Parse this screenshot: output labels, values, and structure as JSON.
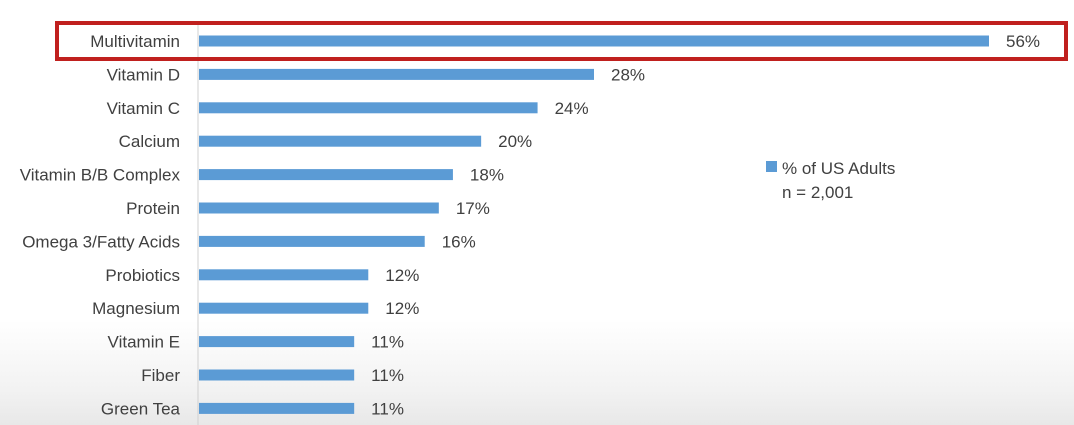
{
  "chart_data": {
    "type": "bar",
    "orientation": "horizontal",
    "categories": [
      "Multivitamin",
      "Vitamin D",
      "Vitamin C",
      "Calcium",
      "Vitamin B/B Complex",
      "Protein",
      "Omega 3/Fatty Acids",
      "Probiotics",
      "Magnesium",
      "Vitamin E",
      "Fiber",
      "Green Tea"
    ],
    "values": [
      56,
      28,
      24,
      20,
      18,
      17,
      16,
      12,
      12,
      11,
      11,
      11
    ],
    "value_labels": [
      "56%",
      "28%",
      "24%",
      "20%",
      "18%",
      "17%",
      "16%",
      "12%",
      "12%",
      "11%",
      "11%",
      "11%"
    ],
    "series": [
      {
        "name": "% of US Adults",
        "values": [
          56,
          28,
          24,
          20,
          18,
          17,
          16,
          12,
          12,
          11,
          11,
          11
        ]
      }
    ],
    "legend": {
      "label": "% of US Adults",
      "note": "n = 2,001",
      "placement": "right"
    },
    "highlighted_category": "Multivitamin",
    "xlim": [
      0,
      56
    ],
    "bar_color": "#5b9bd5",
    "highlight_color": "#c0201e",
    "grid": false
  }
}
